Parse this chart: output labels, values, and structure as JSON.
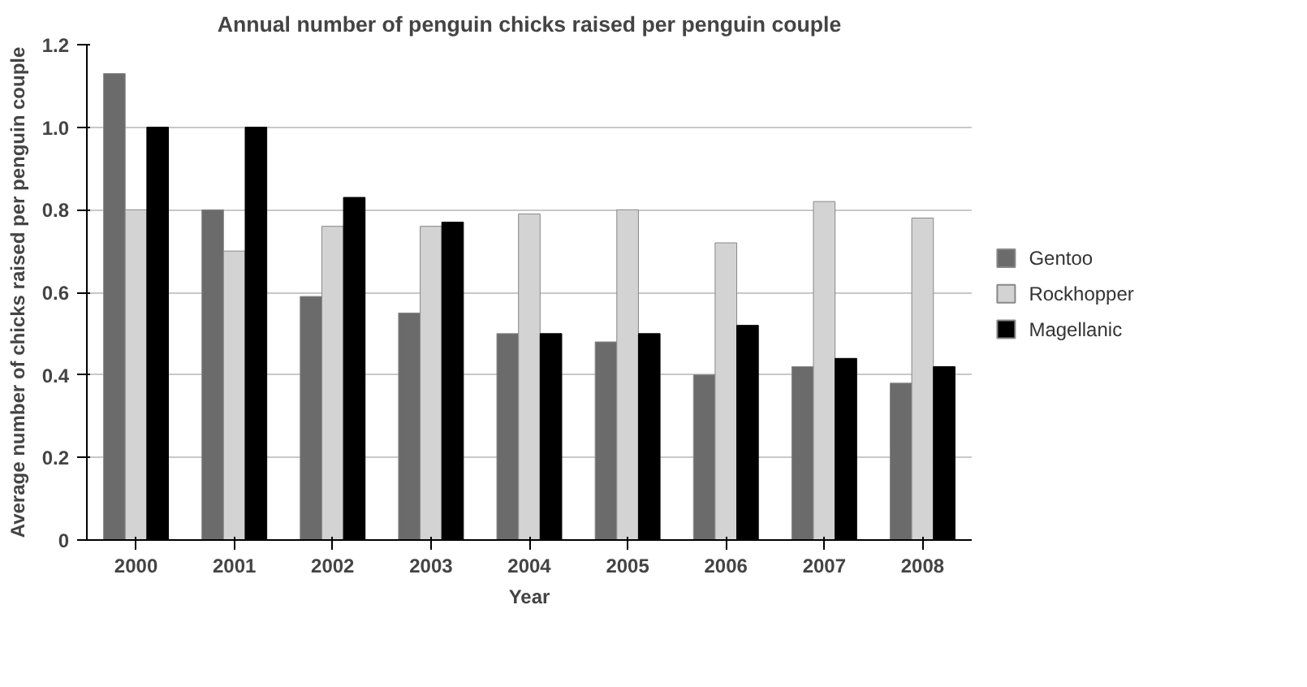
{
  "chart_data": {
    "type": "bar",
    "title": "Annual number of penguin chicks raised per penguin couple",
    "xlabel": "Year",
    "ylabel": "Average number of chicks raised per penguin couple",
    "categories": [
      "2000",
      "2001",
      "2002",
      "2003",
      "2004",
      "2005",
      "2006",
      "2007",
      "2008"
    ],
    "series": [
      {
        "name": "Gentoo",
        "color": "#6b6b6b",
        "values": [
          1.13,
          0.8,
          0.59,
          0.55,
          0.5,
          0.48,
          0.4,
          0.42,
          0.38
        ]
      },
      {
        "name": "Rockhopper",
        "color": "#d3d3d3",
        "values": [
          0.8,
          0.7,
          0.76,
          0.76,
          0.79,
          0.8,
          0.72,
          0.82,
          0.78
        ]
      },
      {
        "name": "Magellanic",
        "color": "#000000",
        "values": [
          1.0,
          1.0,
          0.83,
          0.77,
          0.5,
          0.5,
          0.52,
          0.44,
          0.42
        ]
      }
    ],
    "ylim": [
      0,
      1.2
    ],
    "yticks": [
      0,
      {
        "value": 0.2,
        "label": "0.2"
      },
      {
        "value": 0.4,
        "label": "0.4"
      },
      {
        "value": 0.6,
        "label": "0.6"
      },
      {
        "value": 0.8,
        "label": "0.8"
      },
      {
        "value": 1.0,
        "label": "1.0"
      },
      {
        "value": 1.2,
        "label": "1.2"
      }
    ],
    "grid": "y",
    "legend": "right"
  }
}
